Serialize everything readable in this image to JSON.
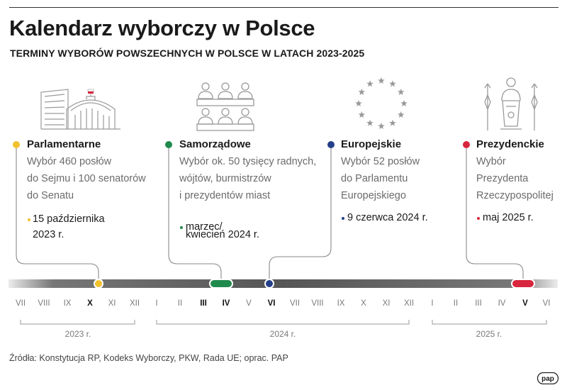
{
  "header": {
    "title": "Kalendarz wyborczy w Polsce",
    "subtitle": "TERMINY WYBORÓW POWSZECHNYCH W POLSCE W LATACH 2023-2025"
  },
  "events": [
    {
      "name": "Parlamentarne",
      "desc": [
        "Wybór 460 posłów",
        "do Sejmu i 100 senatorów",
        "do Senatu"
      ],
      "date": [
        "15 października",
        "2023 r."
      ],
      "color": "#f2c12e",
      "icon": "parliament-icon"
    },
    {
      "name": "Samorządowe",
      "desc": [
        "Wybór ok. 50 tysięcy radnych,",
        "wójtów, burmistrzów",
        "i prezydentów miast"
      ],
      "date": [
        "marzec/",
        "kwiecień 2024 r."
      ],
      "color": "#1f8a4c",
      "icon": "council-icon"
    },
    {
      "name": "Europejskie",
      "desc": [
        "Wybór 52 posłów",
        "do Parlamentu",
        "Europejskiego"
      ],
      "date": [
        "9 czerwca 2024 r."
      ],
      "color": "#233f8a",
      "icon": "eu-stars-icon"
    },
    {
      "name": "Prezydenckie",
      "desc": [
        "Wybór",
        "Prezydenta",
        "Rzeczypospolitej"
      ],
      "date": [
        "maj 2025 r."
      ],
      "color": "#d7263d",
      "icon": "president-podium-icon"
    }
  ],
  "timeline": {
    "months": [
      {
        "label": "VII",
        "bold": false
      },
      {
        "label": "VIII",
        "bold": false
      },
      {
        "label": "IX",
        "bold": false
      },
      {
        "label": "X",
        "bold": true
      },
      {
        "label": "XI",
        "bold": false
      },
      {
        "label": "XII",
        "bold": false
      },
      {
        "label": "I",
        "bold": false
      },
      {
        "label": "II",
        "bold": false
      },
      {
        "label": "III",
        "bold": true
      },
      {
        "label": "IV",
        "bold": true
      },
      {
        "label": "V",
        "bold": false
      },
      {
        "label": "VI",
        "bold": true
      },
      {
        "label": "VII",
        "bold": false
      },
      {
        "label": "VIII",
        "bold": false
      },
      {
        "label": "IX",
        "bold": false
      },
      {
        "label": "X",
        "bold": false
      },
      {
        "label": "XI",
        "bold": false
      },
      {
        "label": "XII",
        "bold": false
      },
      {
        "label": "I",
        "bold": false
      },
      {
        "label": "II",
        "bold": false
      },
      {
        "label": "III",
        "bold": false
      },
      {
        "label": "IV",
        "bold": false
      },
      {
        "label": "V",
        "bold": true
      },
      {
        "label": "VI",
        "bold": false
      }
    ],
    "years": [
      "2023 r.",
      "2024 r.",
      "2025 r."
    ]
  },
  "footer": {
    "sources": "Źródła: Konstytucja RP, Kodeks Wyborczy, PKW, Rada UE; oprac. PAP",
    "logo_text": "pap"
  }
}
